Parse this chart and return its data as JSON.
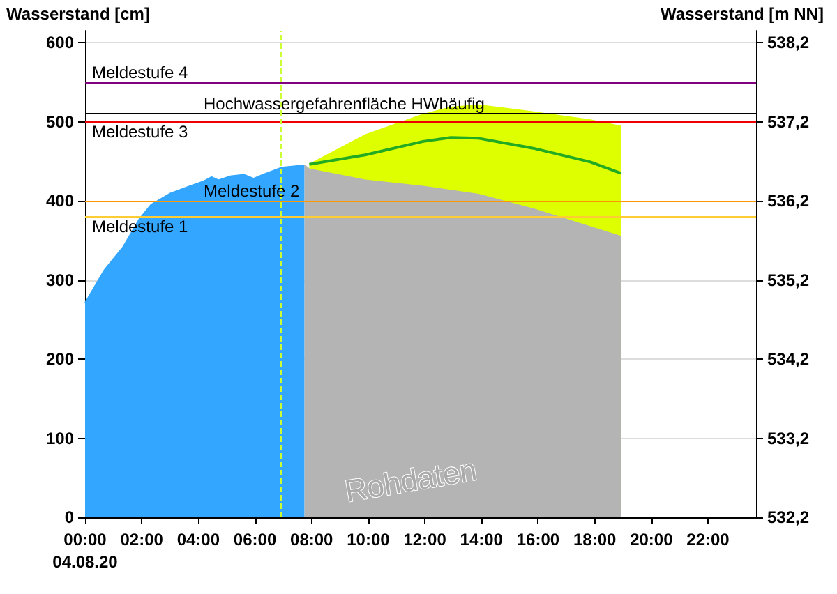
{
  "chart_data": {
    "type": "area",
    "ylabel": "Wasserstand [cm]",
    "y2label": "Wasserstand [m NN]",
    "xlim": [
      0,
      23.7
    ],
    "xticks": [
      {
        "value": 0,
        "label": "00:00\n04.08.20"
      },
      {
        "value": 2,
        "label": "02:00"
      },
      {
        "value": 4,
        "label": "04:00"
      },
      {
        "value": 6,
        "label": "06:00"
      },
      {
        "value": 8,
        "label": "08:00"
      },
      {
        "value": 10,
        "label": "10:00"
      },
      {
        "value": 12,
        "label": "12:00"
      },
      {
        "value": 14,
        "label": "14:00"
      },
      {
        "value": 16,
        "label": "16:00"
      },
      {
        "value": 18,
        "label": "18:00"
      },
      {
        "value": 20,
        "label": "20:00"
      },
      {
        "value": 22,
        "label": "22:00"
      }
    ],
    "ylim": [
      0,
      615
    ],
    "yticks": [
      0,
      100,
      200,
      300,
      400,
      500,
      600
    ],
    "y2lim": [
      532.2,
      538.35
    ],
    "y2ticks": [
      {
        "value": 532.2,
        "label": "532,2"
      },
      {
        "value": 533.2,
        "label": "533,2"
      },
      {
        "value": 534.2,
        "label": "534,2"
      },
      {
        "value": 535.2,
        "label": "535,2"
      },
      {
        "value": 536.2,
        "label": "536,2"
      },
      {
        "value": 537.2,
        "label": "537,2"
      },
      {
        "value": 538.2,
        "label": "538,2"
      }
    ],
    "grid": "y",
    "series": [
      {
        "type": "area",
        "color": "#33a6ff",
        "x": [
          0,
          0.69,
          1.35,
          1.92,
          2.33,
          2.99,
          3.65,
          4.14,
          4.47,
          4.71,
          5.12,
          5.62,
          5.95,
          6.27,
          6.93,
          7.75
        ],
        "values": [
          271,
          313,
          342,
          377,
          395,
          409,
          418,
          424,
          430,
          426,
          431,
          433,
          428,
          433,
          442,
          445
        ]
      },
      {
        "type": "area",
        "color": "#ddff00",
        "x": [
          7.92,
          9.89,
          11.94,
          12.92,
          13.9,
          15.88,
          17.85,
          18.92
        ],
        "values": [
          446,
          483,
          509,
          518,
          521,
          512,
          502,
          494
        ]
      },
      {
        "type": "area",
        "color": "#b4b4b4",
        "x": [
          7.75,
          7.92,
          9.89,
          11.94,
          13.9,
          15.88,
          18.92
        ],
        "values": [
          445,
          440,
          426,
          418,
          408,
          389,
          355
        ]
      },
      {
        "type": "line",
        "color": "#22aa22",
        "x": [
          7.92,
          9.89,
          11.94,
          12.92,
          13.9,
          15.88,
          17.85,
          18.92
        ],
        "values": [
          446,
          458,
          475,
          480,
          479,
          466,
          449,
          435
        ]
      }
    ],
    "ref_lines": [
      {
        "axis": "y",
        "value": 550,
        "label": "Meldestufe 4",
        "color": "#800080"
      },
      {
        "axis": "y",
        "value": 510,
        "label": "Hochwassergefahrenfläche HWhäufig",
        "color": "#000000"
      },
      {
        "axis": "y",
        "value": 500,
        "label": "Meldestufe 3",
        "color": "#ee0000"
      },
      {
        "axis": "y",
        "value": 400,
        "label": "Meldestufe 2",
        "color": "#ff9900"
      },
      {
        "axis": "y",
        "value": 380,
        "label": "Meldestufe 1",
        "color": "#ffcc33"
      },
      {
        "axis": "x",
        "value": 6.9,
        "color": "#ccff33",
        "line_style": "dashed"
      }
    ],
    "annotations": [
      "Rohdaten"
    ]
  }
}
